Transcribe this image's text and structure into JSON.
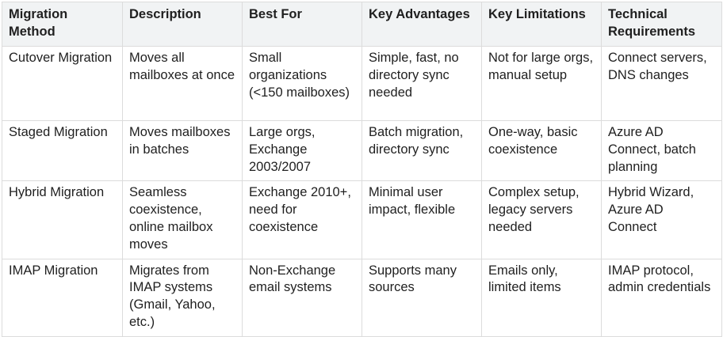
{
  "table": {
    "headers": [
      "Migration Method",
      "Description",
      "Best For",
      "Key Advantages",
      "Key Limitations",
      "Technical Requirements"
    ],
    "rows": [
      [
        "Cutover Migration",
        "Moves all mailboxes at once",
        "Small organizations (<150 mailboxes)",
        "Simple, fast, no directory sync needed",
        "Not for large orgs, manual setup",
        "Connect servers, DNS changes"
      ],
      [
        "Staged Migration",
        "Moves mailboxes in batches",
        "Large orgs, Exchange 2003/2007",
        "Batch migration, directory sync",
        "One-way, basic coexistence",
        "Azure AD Connect, batch planning"
      ],
      [
        "Hybrid Migration",
        "Seamless coexistence, online mailbox moves",
        "Exchange 2010+, need for coexistence",
        "Minimal user impact, flexible",
        "Complex setup, legacy servers needed",
        "Hybrid Wizard, Azure AD Connect"
      ],
      [
        "IMAP Migration",
        "Migrates from IMAP systems (Gmail, Yahoo, etc.)",
        "Non-Exchange email systems",
        "Supports many sources",
        "Emails only, limited items",
        "IMAP protocol, admin credentials"
      ]
    ]
  }
}
